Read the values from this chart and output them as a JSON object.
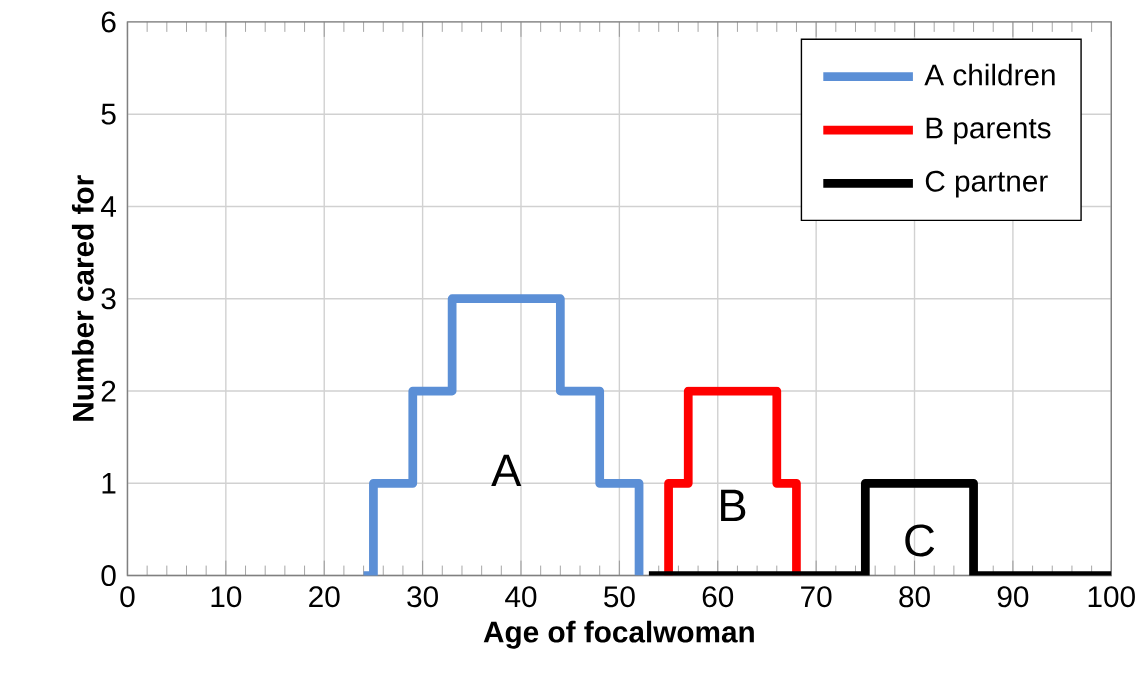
{
  "chart_data": {
    "type": "step",
    "xlabel": "Age of focalwoman",
    "ylabel": "Number cared for",
    "xlim": [
      0,
      100
    ],
    "ylim": [
      0,
      6
    ],
    "xticks": [
      0,
      10,
      20,
      30,
      40,
      50,
      60,
      70,
      80,
      90,
      100
    ],
    "yticks": [
      0,
      1,
      2,
      3,
      4,
      5,
      6
    ],
    "grid": true,
    "legend": "top right",
    "marker": "none",
    "line_style": "solid",
    "series": [
      {
        "name": "A children",
        "color": "#5b8fd6",
        "x": [
          24,
          25,
          29,
          33,
          44,
          48,
          52
        ],
        "values": [
          0,
          1,
          2,
          3,
          2,
          1,
          0
        ]
      },
      {
        "name": "B parents",
        "color": "#ff0000",
        "x": [
          55,
          55,
          57,
          66,
          68
        ],
        "values": [
          0,
          1,
          2,
          1,
          0
        ]
      },
      {
        "name": "C partner",
        "color": "#000000",
        "x": [
          53,
          75,
          86,
          100
        ],
        "values": [
          0,
          1,
          0,
          0
        ]
      }
    ],
    "annotations": [
      "A",
      "B",
      "C"
    ]
  }
}
